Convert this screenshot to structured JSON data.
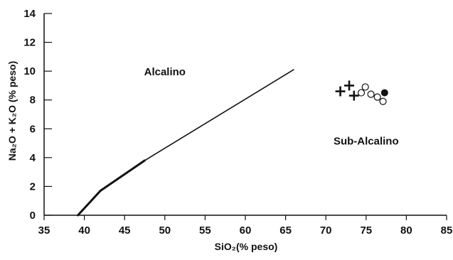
{
  "chart_data": {
    "type": "scatter",
    "title": "",
    "xlabel": "SiO₂(% peso)",
    "ylabel": "Na₂O + K₂O (% peso)",
    "xlim": [
      35,
      85
    ],
    "ylim": [
      0,
      14
    ],
    "xticks": [
      35,
      40,
      45,
      50,
      55,
      60,
      65,
      70,
      75,
      80,
      85
    ],
    "yticks": [
      0,
      2,
      4,
      6,
      8,
      10,
      12,
      14
    ],
    "grid": false,
    "legend": "none",
    "region_labels": [
      {
        "text": "Alcalino",
        "x": 50,
        "y": 9.7
      },
      {
        "text": "Sub-Alcalino",
        "x": 75,
        "y": 4.9
      }
    ],
    "boundary_line": [
      {
        "x": 39.2,
        "y": 0.0
      },
      {
        "x": 42.0,
        "y": 1.7
      },
      {
        "x": 47.5,
        "y": 3.8
      },
      {
        "x": 66.0,
        "y": 10.1
      }
    ],
    "series": [
      {
        "marker": "plus",
        "points": [
          {
            "x": 71.8,
            "y": 8.6
          },
          {
            "x": 72.9,
            "y": 9.0
          },
          {
            "x": 73.5,
            "y": 8.3
          }
        ]
      },
      {
        "marker": "open-circle",
        "points": [
          {
            "x": 74.4,
            "y": 8.5
          },
          {
            "x": 74.9,
            "y": 8.9
          },
          {
            "x": 75.6,
            "y": 8.4
          },
          {
            "x": 76.4,
            "y": 8.2
          },
          {
            "x": 77.1,
            "y": 7.9
          }
        ]
      },
      {
        "marker": "filled-circle",
        "points": [
          {
            "x": 77.3,
            "y": 8.5
          }
        ]
      }
    ]
  }
}
